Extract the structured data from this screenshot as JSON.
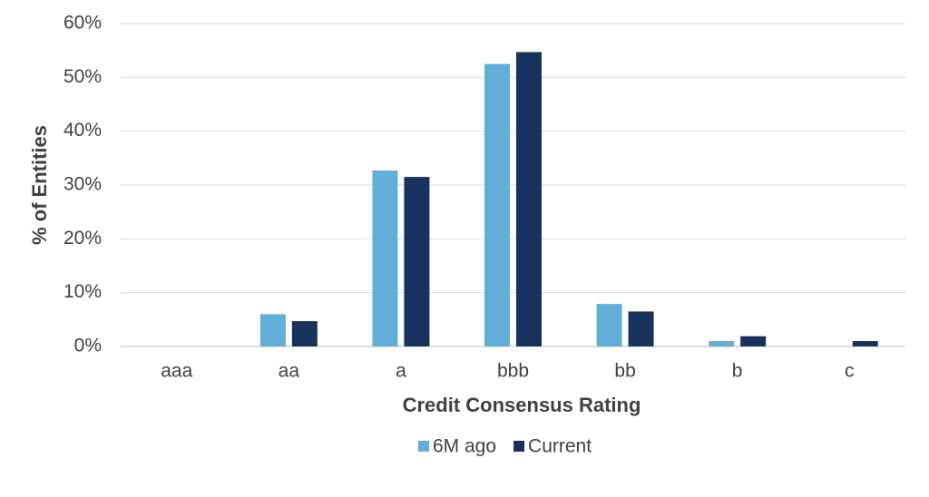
{
  "chart_data": {
    "type": "bar",
    "x_label": "Credit Consensus Rating",
    "y_label": "% of Entities",
    "categories": [
      "aaa",
      "aa",
      "a",
      "bbb",
      "bb",
      "b",
      "c"
    ],
    "series": [
      {
        "name": "6M ago",
        "color": "#63aed6",
        "values": [
          0,
          6.0,
          32.7,
          52.5,
          7.9,
          1.0,
          0
        ]
      },
      {
        "name": "Current",
        "color": "#17325c",
        "values": [
          0,
          4.7,
          31.5,
          54.7,
          6.5,
          1.9,
          1.0
        ]
      }
    ],
    "ylim": [
      0,
      60
    ],
    "yticks": [
      {
        "value": 0,
        "label": "0%"
      },
      {
        "value": 10,
        "label": "10%"
      },
      {
        "value": 20,
        "label": "20%"
      },
      {
        "value": 30,
        "label": "30%"
      },
      {
        "value": 40,
        "label": "40%"
      },
      {
        "value": 50,
        "label": "50%"
      },
      {
        "value": 60,
        "label": "60%"
      }
    ],
    "grid": true
  }
}
